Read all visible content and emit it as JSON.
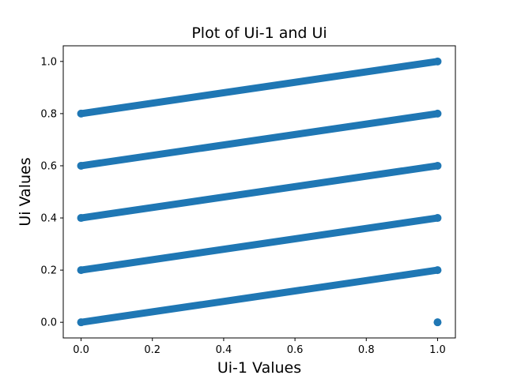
{
  "chart_data": {
    "type": "scatter",
    "title": "Plot of Ui-1 and Ui",
    "xlabel": "Ui-1 Values",
    "ylabel": "Ui Values",
    "xlim": [
      -0.05,
      1.05
    ],
    "ylim": [
      -0.06,
      1.06
    ],
    "xticks": [
      "0.0",
      "0.2",
      "0.4",
      "0.6",
      "0.8",
      "1.0"
    ],
    "yticks": [
      "0.0",
      "0.2",
      "0.4",
      "0.6",
      "0.8",
      "1.0"
    ],
    "grid": false,
    "marker_color": "#1f77b4",
    "lines": [
      {
        "x_start": 0.0,
        "y_start": 0.0,
        "x_end": 1.0,
        "y_end": 0.2
      },
      {
        "x_start": 0.0,
        "y_start": 0.2,
        "x_end": 1.0,
        "y_end": 0.4
      },
      {
        "x_start": 0.0,
        "y_start": 0.4,
        "x_end": 1.0,
        "y_end": 0.6
      },
      {
        "x_start": 0.0,
        "y_start": 0.6,
        "x_end": 1.0,
        "y_end": 0.8
      },
      {
        "x_start": 0.0,
        "y_start": 0.8,
        "x_end": 1.0,
        "y_end": 1.0
      }
    ],
    "isolated_points": [
      {
        "x": 1.0,
        "y": 0.0
      }
    ]
  }
}
